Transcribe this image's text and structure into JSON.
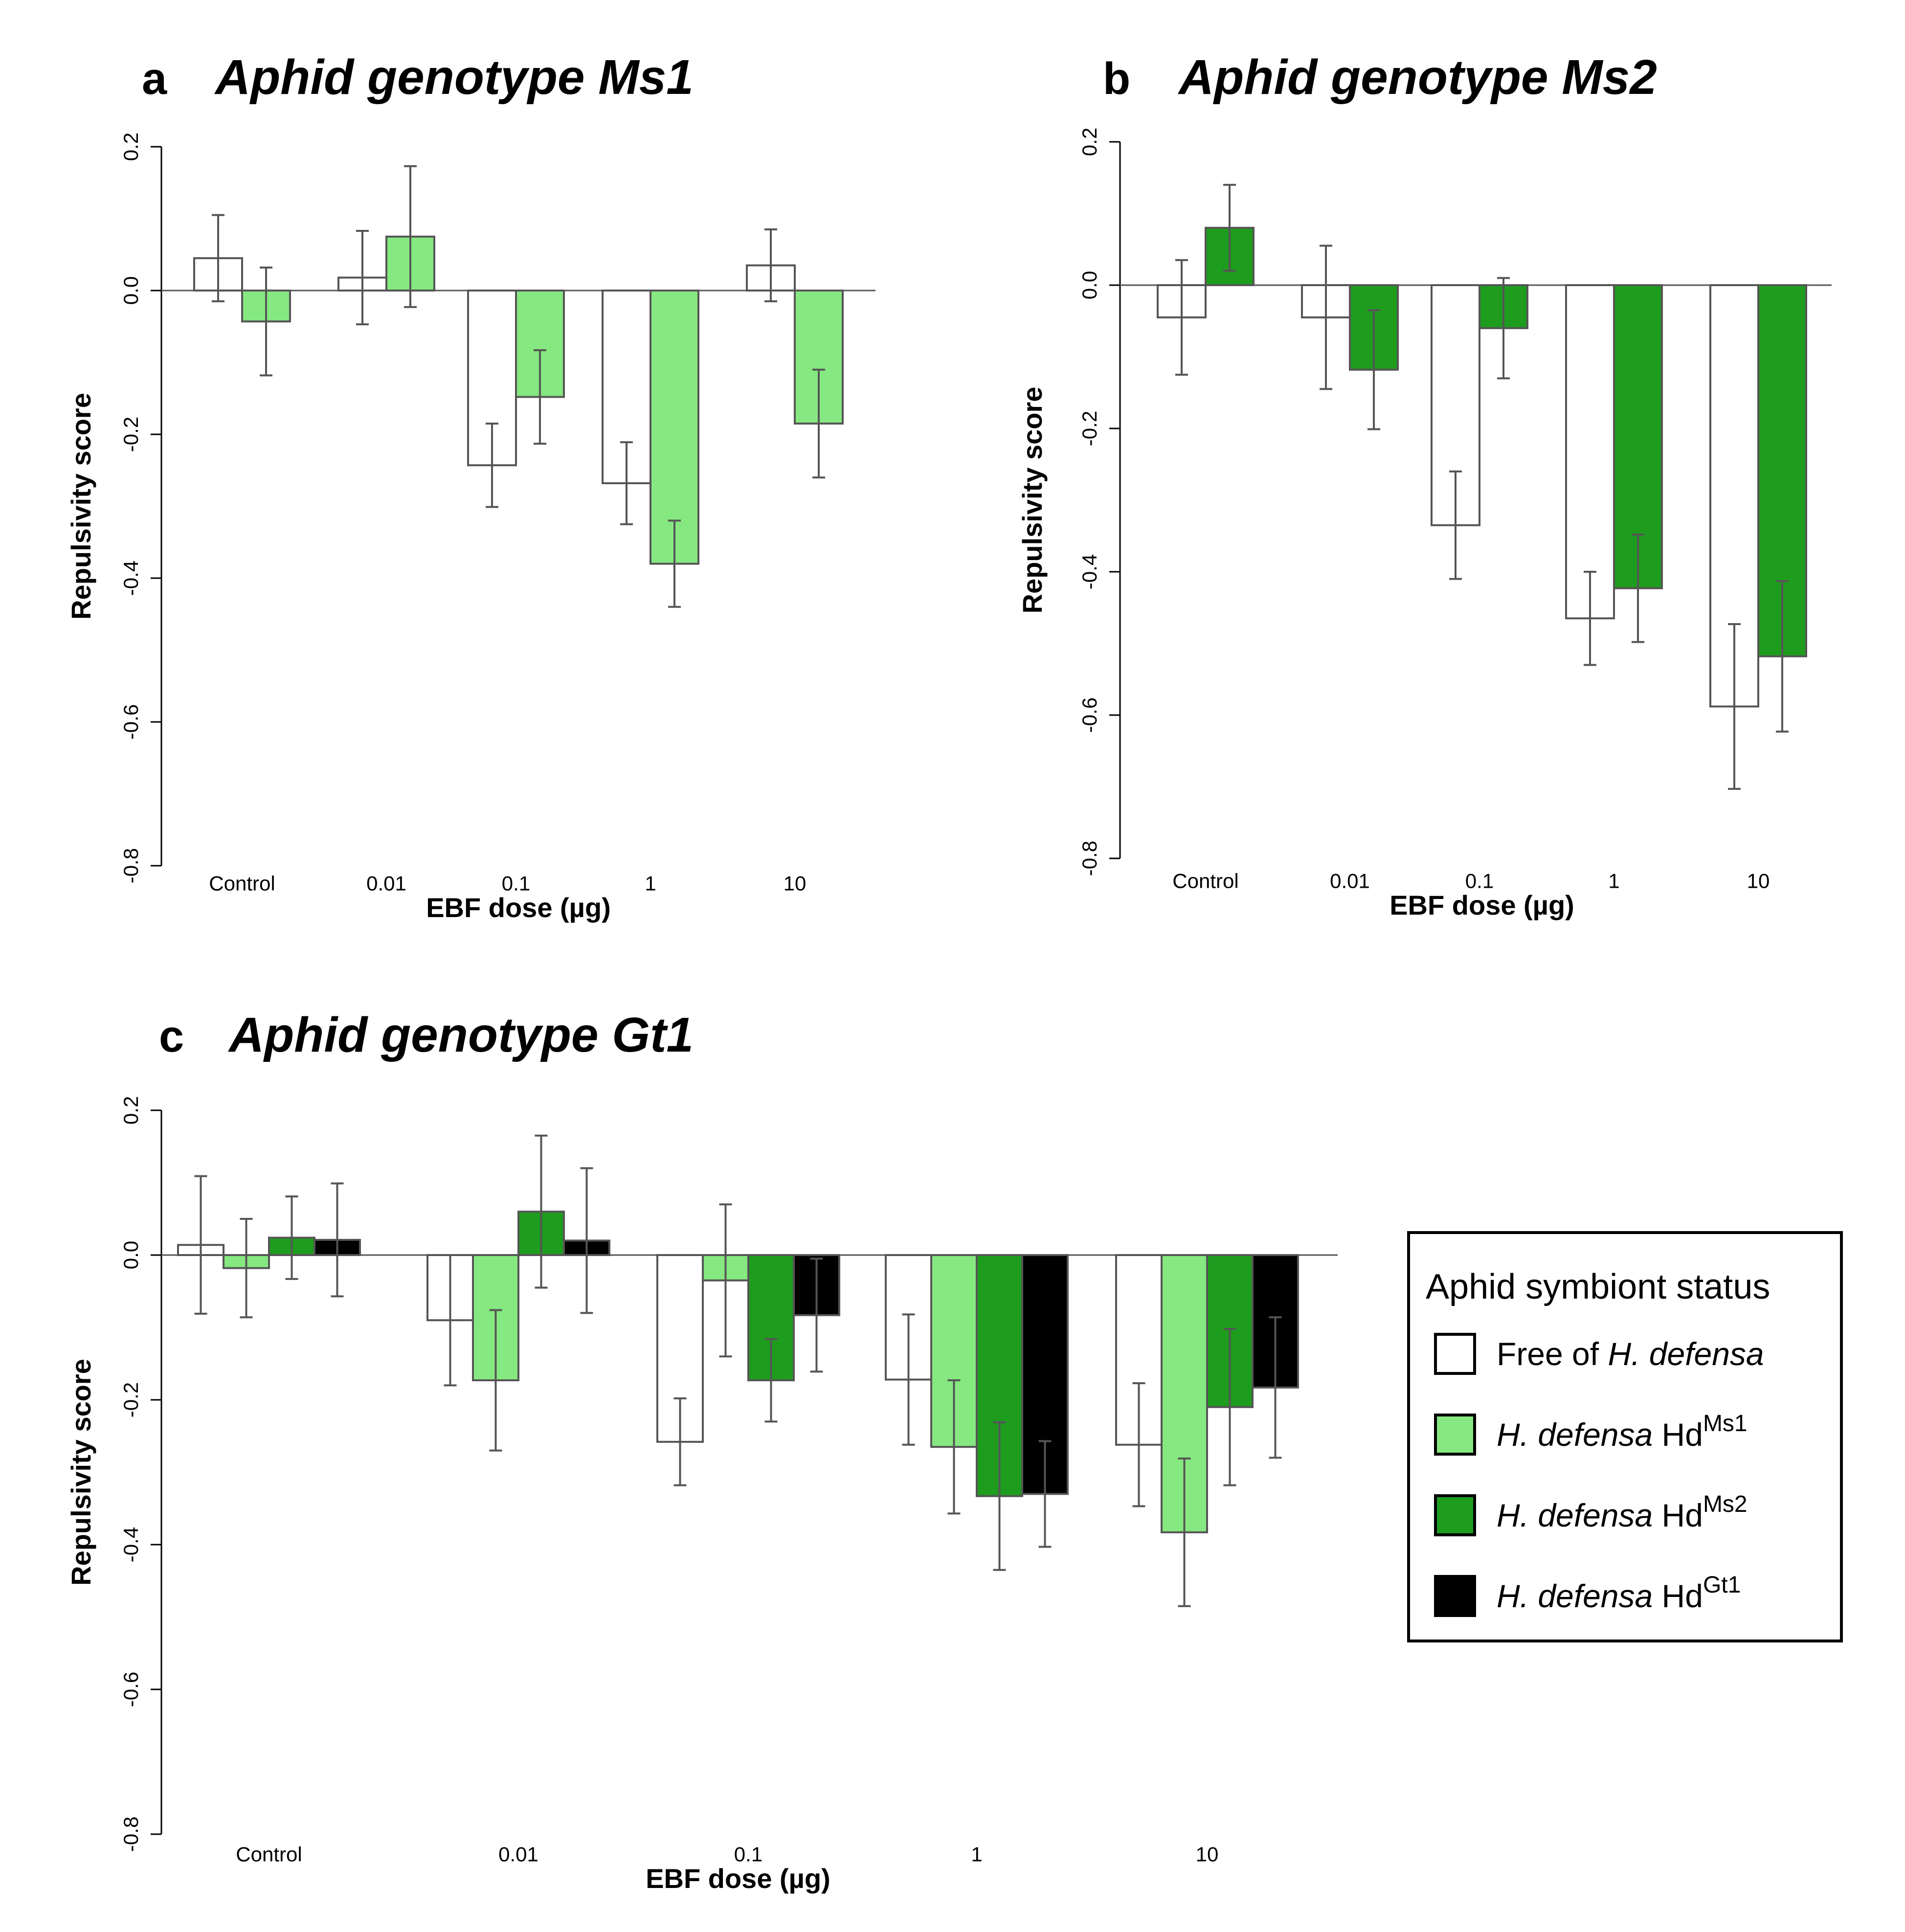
{
  "colors": {
    "free": "#ffffff",
    "hd_ms1": "#86e880",
    "hd_ms2": "#1e9c1e",
    "hd_gt1": "#000000"
  },
  "chart_data": [
    {
      "panel": "a",
      "type": "bar",
      "title": "Aphid genotype Ms1",
      "xlabel": "EBF dose (µg)",
      "ylabel": "Repulsivity score",
      "ylim": [
        -0.8,
        0.2
      ],
      "yticks": [
        "-0.8",
        "-0.6",
        "-0.4",
        "-0.2",
        "0.0",
        "0.2"
      ],
      "categories": [
        "Control",
        "0.01",
        "0.1",
        "1",
        "10"
      ],
      "series": [
        {
          "key": "free",
          "values": [
            0.045,
            0.018,
            -0.243,
            -0.268,
            0.035
          ],
          "errors": [
            0.06,
            0.065,
            0.058,
            0.057,
            0.05
          ]
        },
        {
          "key": "hd_ms1",
          "values": [
            -0.043,
            0.075,
            -0.148,
            -0.38,
            -0.185
          ],
          "errors": [
            0.075,
            0.098,
            0.065,
            0.06,
            0.075
          ]
        }
      ]
    },
    {
      "panel": "b",
      "type": "bar",
      "title": "Aphid genotype Ms2",
      "xlabel": "EBF dose (µg)",
      "ylabel": "Repulsivity score",
      "ylim": [
        -0.8,
        0.2
      ],
      "yticks": [
        "-0.8",
        "-0.6",
        "-0.4",
        "-0.2",
        "0.0",
        "0.2"
      ],
      "categories": [
        "Control",
        "0.01",
        "0.1",
        "1",
        "10"
      ],
      "series": [
        {
          "key": "free",
          "values": [
            -0.045,
            -0.045,
            -0.335,
            -0.465,
            -0.588
          ],
          "errors": [
            0.08,
            0.1,
            0.075,
            0.065,
            0.115
          ]
        },
        {
          "key": "hd_ms2",
          "values": [
            0.08,
            -0.118,
            -0.06,
            -0.423,
            -0.518
          ],
          "errors": [
            0.06,
            0.083,
            0.07,
            0.075,
            0.105
          ]
        }
      ]
    },
    {
      "panel": "c",
      "type": "bar",
      "title": "Aphid genotype Gt1",
      "xlabel": "EBF dose (µg)",
      "ylabel": "Repulsivity score",
      "ylim": [
        -0.8,
        0.2
      ],
      "yticks": [
        "-0.8",
        "-0.6",
        "-0.4",
        "-0.2",
        "0.0",
        "0.2"
      ],
      "categories": [
        "Control",
        "0.01",
        "0.1",
        "1",
        "10"
      ],
      "series": [
        {
          "key": "free",
          "values": [
            0.014,
            -0.09,
            -0.258,
            -0.172,
            -0.262
          ],
          "errors": [
            0.095,
            0.09,
            0.06,
            0.09,
            0.085
          ]
        },
        {
          "key": "hd_ms1",
          "values": [
            -0.018,
            -0.173,
            -0.035,
            -0.265,
            -0.383
          ],
          "errors": [
            0.068,
            0.097,
            0.105,
            0.092,
            0.102
          ]
        },
        {
          "key": "hd_ms2",
          "values": [
            0.024,
            0.06,
            -0.173,
            -0.333,
            -0.21
          ],
          "errors": [
            0.057,
            0.105,
            0.057,
            0.102,
            0.108
          ]
        },
        {
          "key": "hd_gt1",
          "values": [
            0.021,
            0.02,
            -0.083,
            -0.33,
            -0.183
          ],
          "errors": [
            0.078,
            0.1,
            0.078,
            0.073,
            0.097
          ]
        }
      ]
    }
  ],
  "legend": {
    "title": "Aphid symbiont status",
    "items": [
      {
        "key": "free",
        "prefix": "Free of ",
        "italic": "H. defensa",
        "suffix": "",
        "sup": ""
      },
      {
        "key": "hd_ms1",
        "prefix": "",
        "italic": "H. defensa",
        "suffix": " Hd",
        "sup": "Ms1"
      },
      {
        "key": "hd_ms2",
        "prefix": "",
        "italic": "H. defensa",
        "suffix": " Hd",
        "sup": "Ms2"
      },
      {
        "key": "hd_gt1",
        "prefix": "",
        "italic": "H. defensa",
        "suffix": " Hd",
        "sup": "Gt1"
      }
    ]
  }
}
